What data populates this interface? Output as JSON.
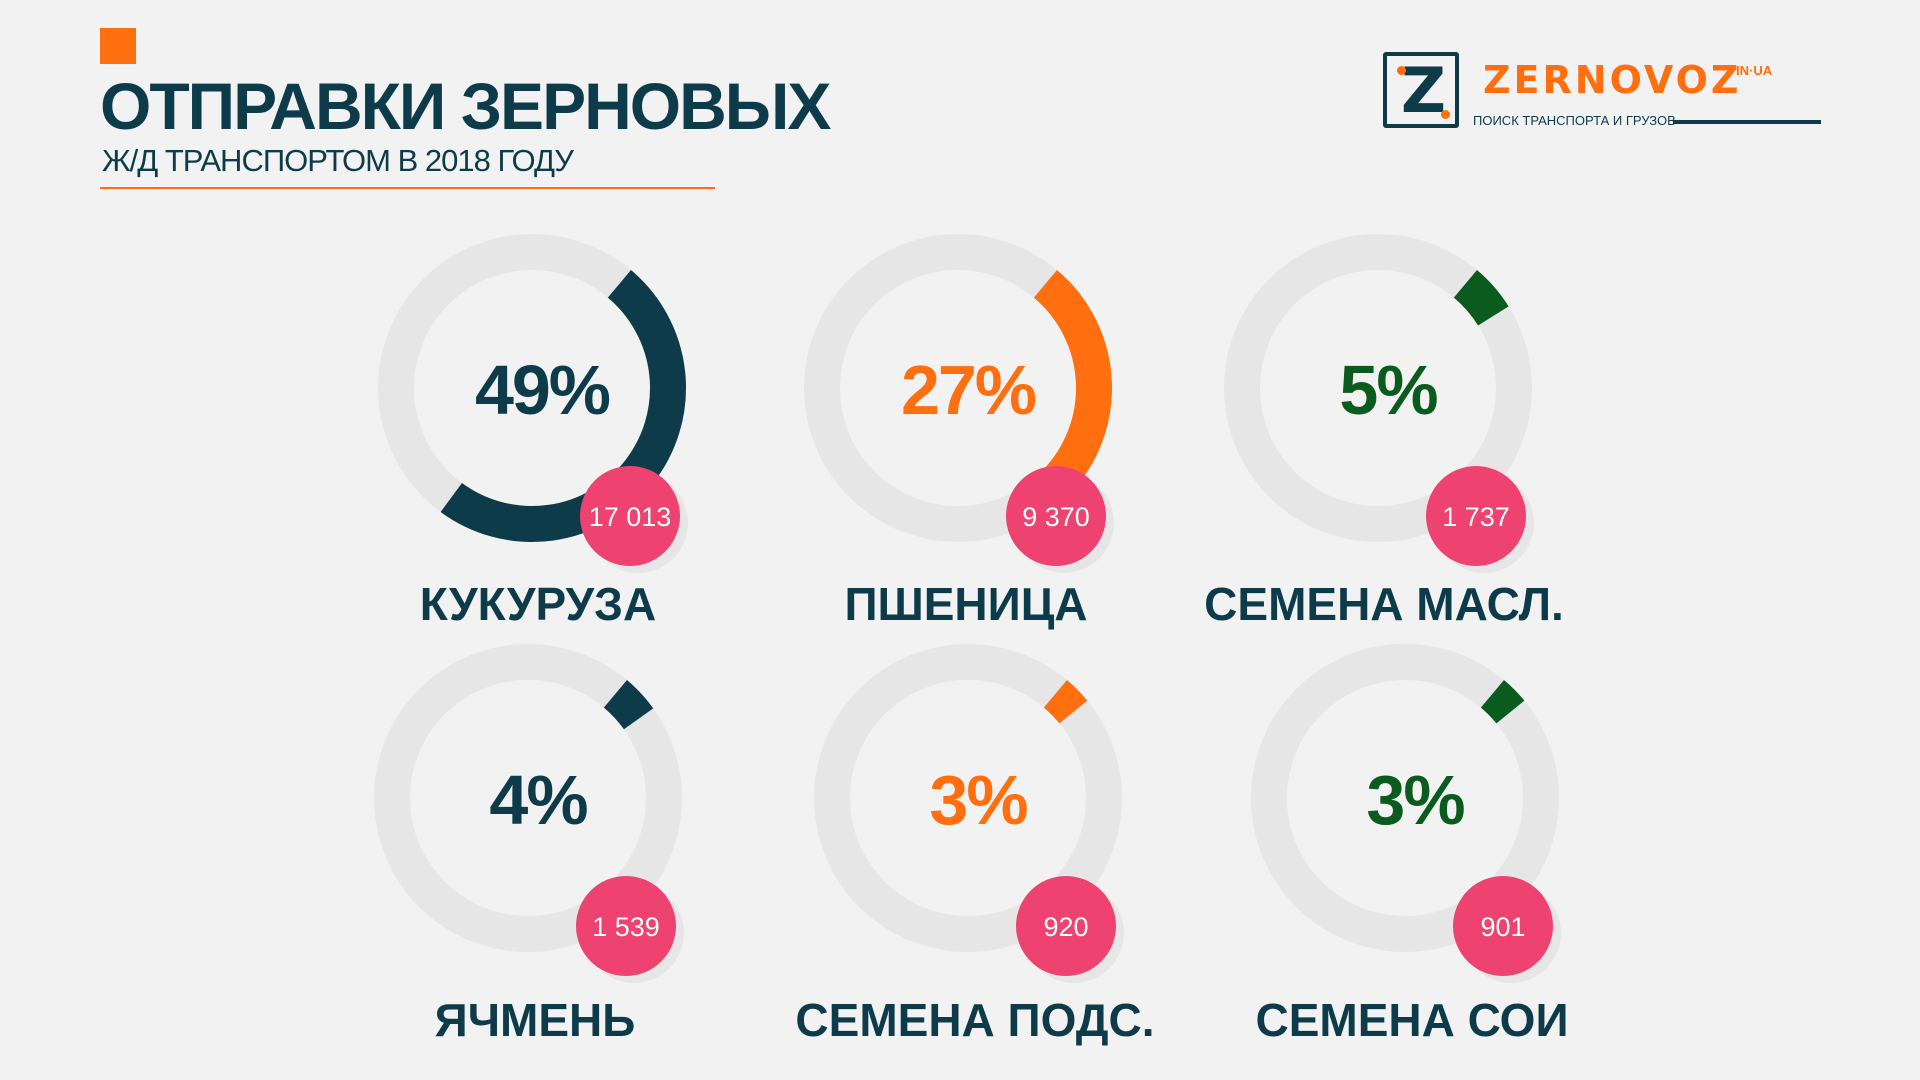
{
  "header": {
    "title": "ОТПРАВКИ ЗЕРНОВЫХ",
    "subtitle": "Ж/Д ТРАНСПОРТОМ В 2018 ГОДУ"
  },
  "logo": {
    "letter": "Z",
    "name": "ZERNOVOZ",
    "domain": "IN·UA",
    "tagline": "ПОИСК ТРАНСПОРТА И ГРУЗОВ"
  },
  "colors": {
    "navy": "#0d3b49",
    "orange": "#ff6f0f",
    "green": "#0b5a1e",
    "pink": "#ee4270",
    "track": "#e6e6e6"
  },
  "chart_data": {
    "type": "pie",
    "variant": "donut-grid",
    "title": "ОТПРАВКИ ЗЕРНОВЫХ",
    "subtitle": "Ж/Д ТРАНСПОРТОМ В 2018 ГОДУ",
    "items": [
      {
        "category": "КУКУРУЗА",
        "percent": 49,
        "percent_label": "49%",
        "value": 17013,
        "value_label": "17 013",
        "color": "#0d3b49"
      },
      {
        "category": "ПШЕНИЦА",
        "percent": 27,
        "percent_label": "27%",
        "value": 9370,
        "value_label": "9 370",
        "color": "#ff6f0f"
      },
      {
        "category": "СЕМЕНА МАСЛ.",
        "percent": 5,
        "percent_label": "5%",
        "value": 1737,
        "value_label": "1 737",
        "color": "#0b5a1e"
      },
      {
        "category": "ЯЧМЕНЬ",
        "percent": 4,
        "percent_label": "4%",
        "value": 1539,
        "value_label": "1 539",
        "color": "#0d3b49"
      },
      {
        "category": "СЕМЕНА ПОДС.",
        "percent": 3,
        "percent_label": "3%",
        "value": 920,
        "value_label": "920",
        "color": "#ff6f0f"
      },
      {
        "category": "СЕМЕНА СОИ",
        "percent": 3,
        "percent_label": "3%",
        "value": 901,
        "value_label": "901",
        "color": "#0b5a1e"
      }
    ]
  }
}
